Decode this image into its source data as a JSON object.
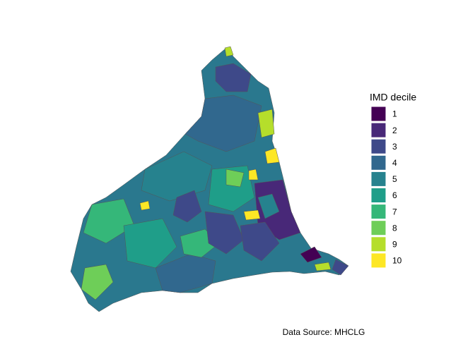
{
  "map": {
    "legend": {
      "title": "IMD decile",
      "items": [
        {
          "label": "1",
          "color": "#440154"
        },
        {
          "label": "2",
          "color": "#482878"
        },
        {
          "label": "3",
          "color": "#3e4989"
        },
        {
          "label": "4",
          "color": "#31688e"
        },
        {
          "label": "5",
          "color": "#26828e"
        },
        {
          "label": "6",
          "color": "#1f9e89"
        },
        {
          "label": "7",
          "color": "#35b779"
        },
        {
          "label": "8",
          "color": "#6ece58"
        },
        {
          "label": "9",
          "color": "#b5de2b"
        },
        {
          "label": "10",
          "color": "#fde725"
        }
      ]
    },
    "caption": "Data Source: MHCLG"
  }
}
